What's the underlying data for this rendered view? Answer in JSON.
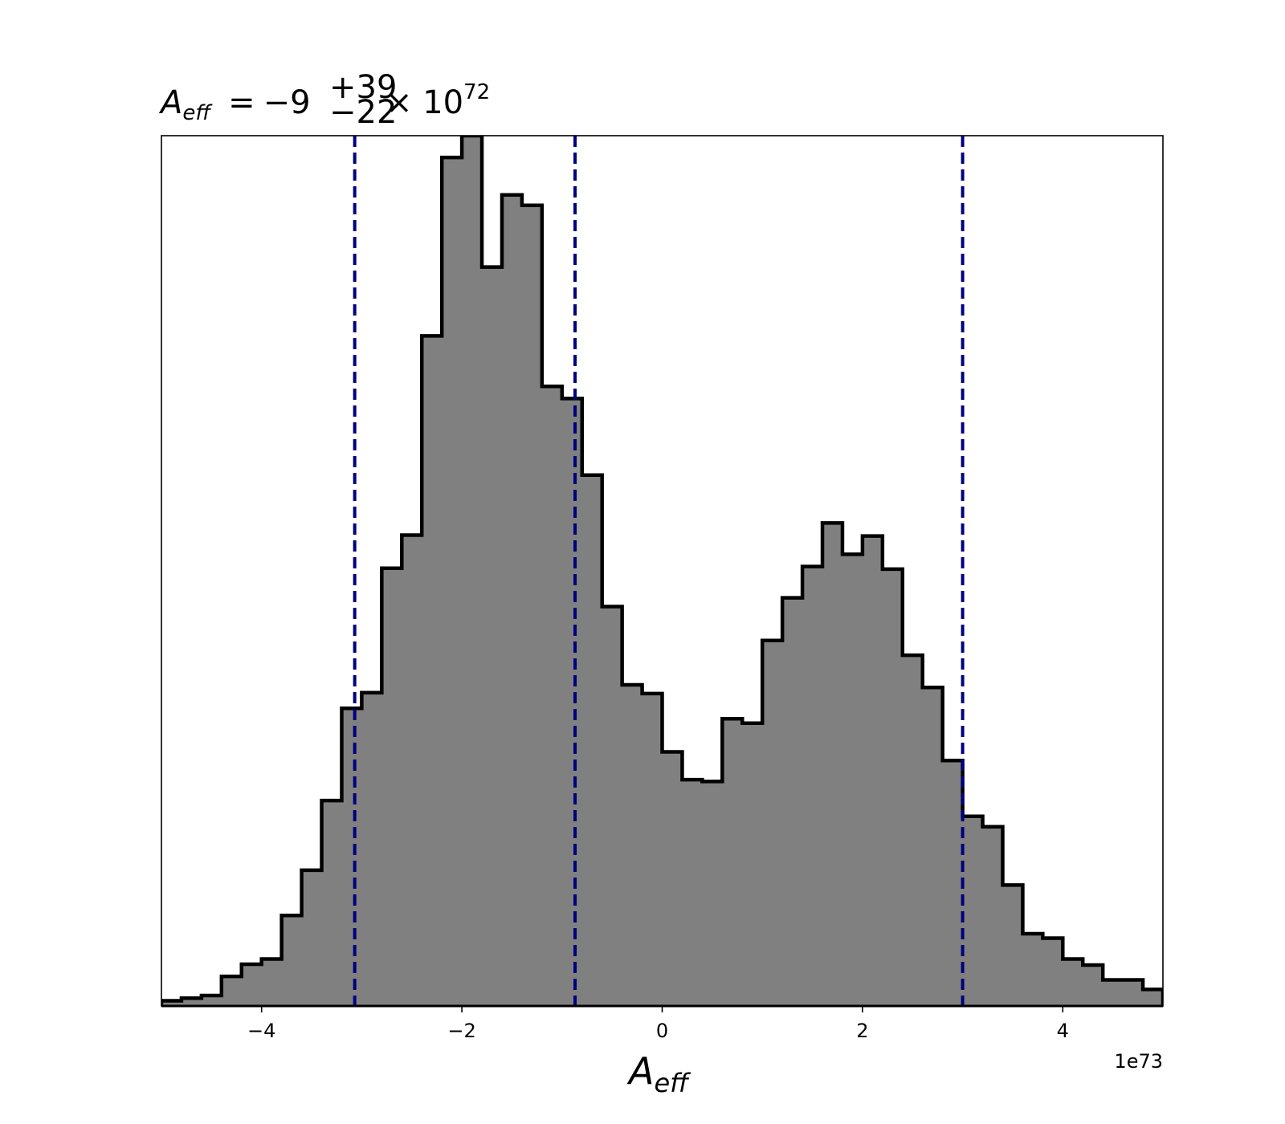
{
  "chart_data": {
    "type": "histogram",
    "title": {
      "main": "A",
      "sub": "eff",
      "equals": "=",
      "base": "−9",
      "sup": "+39",
      "sub2": "−22",
      "times": "× 10",
      "exp": "72"
    },
    "xlabel": {
      "main": "A",
      "sub": "eff"
    },
    "ylabel": "",
    "offset_text": "1e73",
    "x_unit_scale": "1e73",
    "xlim": [
      -5.0,
      5.0
    ],
    "ylim": [
      0,
      1.0
    ],
    "y_ticks_shown": false,
    "grid": false,
    "bin_edges": [
      -5.0,
      -4.8,
      -4.6,
      -4.4,
      -4.2,
      -4.0,
      -3.8,
      -3.6,
      -3.4,
      -3.2,
      -3.0,
      -2.8,
      -2.6,
      -2.4,
      -2.2,
      -2.0,
      -1.8,
      -1.6,
      -1.4,
      -1.2,
      -1.0,
      -0.8,
      -0.6,
      -0.4,
      -0.2,
      0.0,
      0.2,
      0.4,
      0.6,
      0.8,
      1.0,
      1.2,
      1.4,
      1.6,
      1.8,
      2.0,
      2.2,
      2.4,
      2.6,
      2.8,
      3.0,
      3.2,
      3.4,
      3.6,
      3.8,
      4.0,
      4.2,
      4.4,
      4.6,
      4.8,
      5.0
    ],
    "counts": [
      0.006,
      0.009,
      0.012,
      0.034,
      0.048,
      0.054,
      0.104,
      0.156,
      0.236,
      0.342,
      0.36,
      0.503,
      0.541,
      0.77,
      0.975,
      1.0,
      0.849,
      0.932,
      0.92,
      0.712,
      0.698,
      0.61,
      0.459,
      0.369,
      0.359,
      0.292,
      0.26,
      0.258,
      0.33,
      0.325,
      0.42,
      0.469,
      0.505,
      0.555,
      0.519,
      0.54,
      0.502,
      0.403,
      0.366,
      0.282,
      0.218,
      0.206,
      0.139,
      0.083,
      0.078,
      0.054,
      0.047,
      0.03,
      0.03,
      0.019
    ],
    "fill_color": "#808080",
    "edge_color": "#000000",
    "x_ticks": [
      -4,
      -2,
      0,
      2,
      4
    ],
    "x_tick_labels": [
      "−4",
      "−2",
      "0",
      "2",
      "4"
    ],
    "reference_lines": [
      {
        "x": -3.07,
        "style": "dashed",
        "color": "#00007f"
      },
      {
        "x": -0.87,
        "style": "dashed",
        "color": "#00007f"
      },
      {
        "x": 3.0,
        "style": "dashed",
        "color": "#00007f"
      }
    ]
  }
}
